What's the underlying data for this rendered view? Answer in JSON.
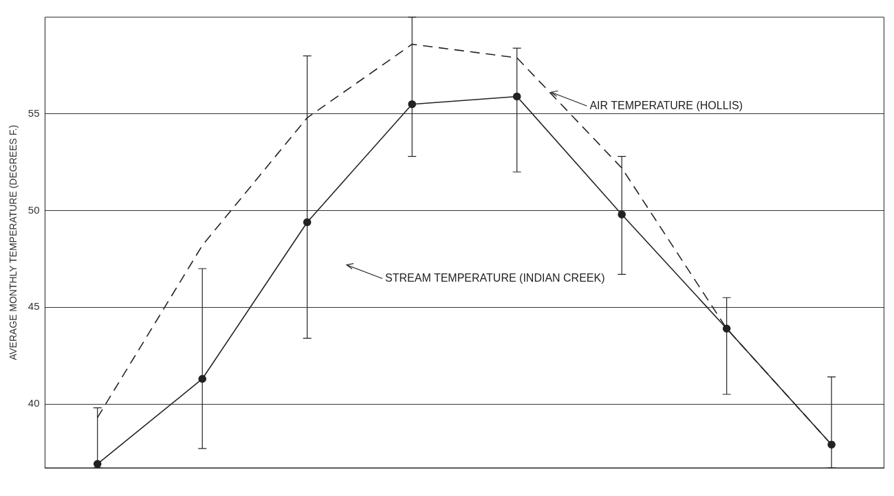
{
  "chart_data": {
    "type": "line",
    "ylabel": "AVERAGE MONTHLY TEMPERATURE (DEGREES F.)",
    "categories": [
      null,
      null,
      null,
      null,
      null,
      null,
      null,
      null
    ],
    "series": [
      {
        "color": "#222222",
        "line_style": "dashed",
        "marker": "none",
        "values": [
          39.3,
          48.2,
          54.8,
          58.6,
          57.9,
          52.2,
          43.9,
          37.9
        ]
      },
      {
        "color": "#222222",
        "line_style": "solid",
        "marker": "circle",
        "values": [
          36.9,
          41.3,
          49.4,
          55.5,
          55.9,
          49.8,
          43.9,
          37.9
        ],
        "errors": [
          [
            36.7,
            39.8
          ],
          [
            37.7,
            47.0
          ],
          [
            43.4,
            58.0
          ],
          [
            52.8,
            60.0
          ],
          [
            52.0,
            58.4
          ],
          [
            46.7,
            52.8
          ],
          [
            40.5,
            45.5
          ],
          [
            36.7,
            41.4
          ]
        ]
      }
    ],
    "ylim": [
      36.7,
      60
    ],
    "yticks": [
      40,
      45,
      50,
      55
    ],
    "annotations": [
      "AIR TEMPERATURE (HOLLIS)",
      "STREAM TEMPERATURE (INDIAN CREEK)"
    ],
    "grid": "y",
    "legend": false,
    "tick_labels": "y"
  }
}
